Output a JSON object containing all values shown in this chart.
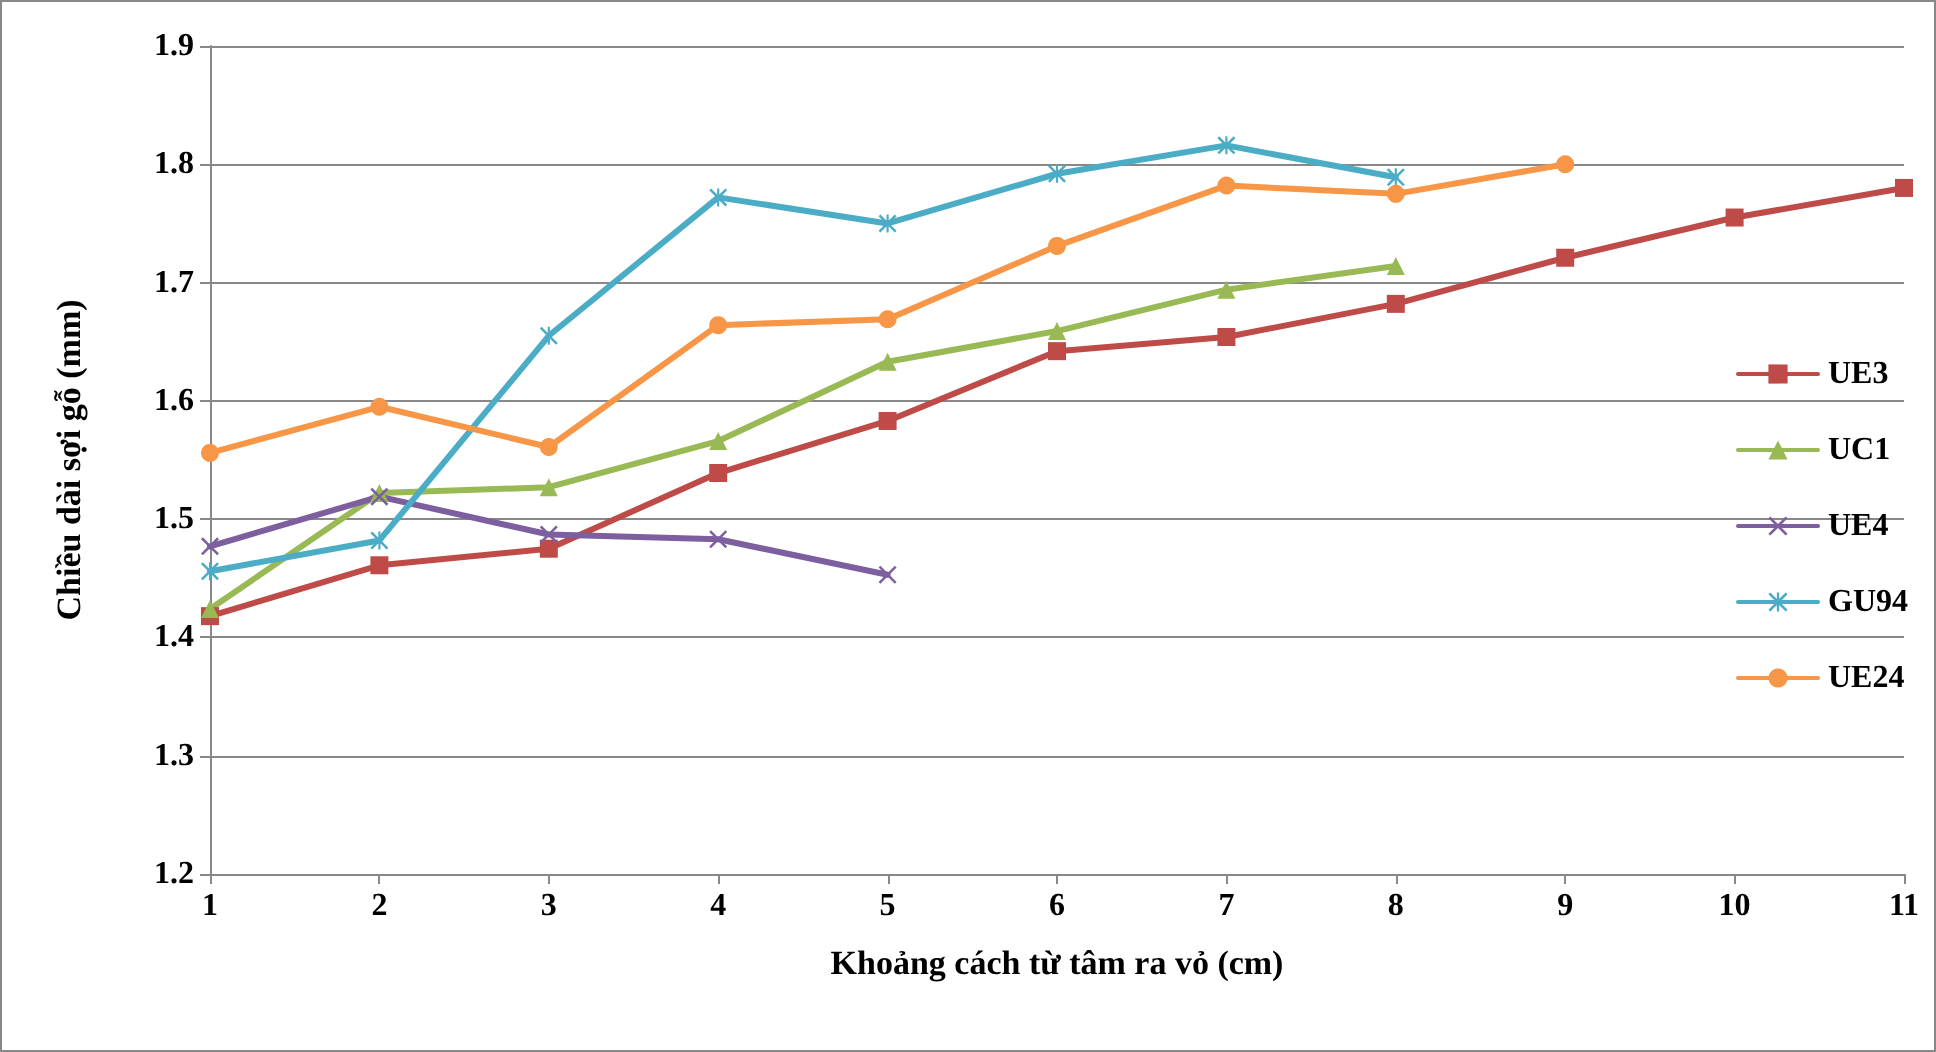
{
  "chart_data": {
    "type": "line",
    "xlabel": "Khoảng cách từ tâm ra vỏ (cm)",
    "ylabel": "Chiều dài sợi gỗ (mm)",
    "xlim": [
      1,
      11
    ],
    "xticks": [
      1,
      2,
      3,
      4,
      5,
      6,
      7,
      8,
      9,
      10,
      11
    ],
    "ylim": [
      1.2,
      1.9
    ],
    "yticks": [
      1.2,
      1.3,
      1.4,
      1.5,
      1.6,
      1.7,
      1.8,
      1.9
    ],
    "grid": "y",
    "legend": "right",
    "line_style": "solid",
    "series": [
      {
        "name": "UE3",
        "color": "#be4b48",
        "marker": "square",
        "x": [
          1,
          2,
          3,
          4,
          5,
          6,
          7,
          8,
          9,
          10,
          11
        ],
        "values": [
          1.418,
          1.461,
          1.475,
          1.539,
          1.583,
          1.642,
          1.654,
          1.682,
          1.721,
          1.755,
          1.78
        ]
      },
      {
        "name": "UC1",
        "color": "#98b954",
        "marker": "triangle",
        "x": [
          1,
          2,
          3,
          4,
          5,
          6,
          7,
          8
        ],
        "values": [
          1.424,
          1.522,
          1.527,
          1.566,
          1.633,
          1.659,
          1.694,
          1.714
        ]
      },
      {
        "name": "UE4",
        "color": "#7d5fa0",
        "marker": "cross",
        "x": [
          1,
          2,
          3,
          4,
          5
        ],
        "values": [
          1.477,
          1.519,
          1.487,
          1.483,
          1.453
        ]
      },
      {
        "name": "GU94",
        "color": "#4bacc6",
        "marker": "star",
        "x": [
          1,
          2,
          3,
          4,
          5,
          6,
          7,
          8
        ],
        "values": [
          1.456,
          1.482,
          1.655,
          1.772,
          1.75,
          1.792,
          1.816,
          1.789
        ]
      },
      {
        "name": "UE24",
        "color": "#f79646",
        "marker": "circle",
        "x": [
          1,
          2,
          3,
          4,
          5,
          6,
          7,
          8,
          9
        ],
        "values": [
          1.556,
          1.595,
          1.561,
          1.664,
          1.669,
          1.731,
          1.782,
          1.775,
          1.8
        ]
      }
    ]
  }
}
